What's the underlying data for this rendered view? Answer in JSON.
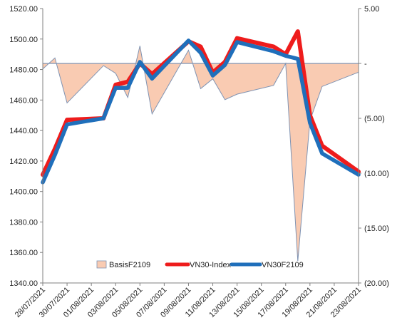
{
  "chart_data": {
    "type": "line",
    "x": [
      "28/07/2021",
      "29/07/2021",
      "30/07/2021",
      "02/08/2021",
      "03/08/2021",
      "04/08/2021",
      "05/08/2021",
      "06/08/2021",
      "09/08/2021",
      "10/08/2021",
      "11/08/2021",
      "12/08/2021",
      "13/08/2021",
      "16/08/2021",
      "17/08/2021",
      "18/08/2021",
      "19/08/2021",
      "20/08/2021",
      "23/08/2021"
    ],
    "x_tick_labels": [
      "28/07/2021",
      "30/07/2021",
      "01/08/2021",
      "03/08/2021",
      "05/08/2021",
      "07/08/2021",
      "09/08/2021",
      "11/08/2021",
      "13/08/2021",
      "15/08/2021",
      "17/08/2021",
      "19/08/2021",
      "21/08/2021",
      "23/08/2021"
    ],
    "y_left": {
      "range": [
        1340,
        1520
      ],
      "tick_labels": [
        "1340.00",
        "1360.00",
        "1380.00",
        "1400.00",
        "1420.00",
        "1440.00",
        "1460.00",
        "1480.00",
        "1500.00",
        "1520.00"
      ]
    },
    "y_right": {
      "range": [
        -20,
        5
      ],
      "inverted": true,
      "tick_labels": [
        "5.00",
        "-",
        "(5.00)",
        "(10.00)",
        "(15.00)",
        "(20.00)"
      ]
    },
    "series": [
      {
        "name": "BasisF2109",
        "axis": "right",
        "style": "area",
        "color": "#f9cbb2",
        "edge_color": "#7f93b3",
        "values": [
          -0.5,
          0.5,
          -3.6,
          -0.2,
          -0.9,
          -3.1,
          1.6,
          -4.6,
          1.2,
          -2.3,
          -1.4,
          -3.3,
          -2.8,
          -2.0,
          0.0,
          -18.0,
          -5.2,
          -2.1,
          -0.8
        ]
      },
      {
        "name": "VN30-Index",
        "axis": "left",
        "style": "line",
        "color": "#ee1c1c",
        "values": [
          1411.0,
          1428.0,
          1447.0,
          1448.0,
          1470.0,
          1472.0,
          1484.0,
          1477.0,
          1498.5,
          1495.0,
          1478.0,
          1485.0,
          1500.5,
          1495.0,
          1490.0,
          1505.0,
          1450.0,
          1430.0,
          1413.0
        ]
      },
      {
        "name": "VN30F2109",
        "axis": "left",
        "style": "line",
        "color": "#1f6fbb",
        "values": [
          1406.0,
          1424.0,
          1444.0,
          1448.0,
          1468.0,
          1468.0,
          1485.0,
          1474.0,
          1499.0,
          1491.0,
          1476.0,
          1483.0,
          1498.0,
          1492.0,
          1489.0,
          1487.0,
          1445.0,
          1425.0,
          1411.0
        ]
      }
    ],
    "legend_position": "bottom-center",
    "grid": false
  }
}
